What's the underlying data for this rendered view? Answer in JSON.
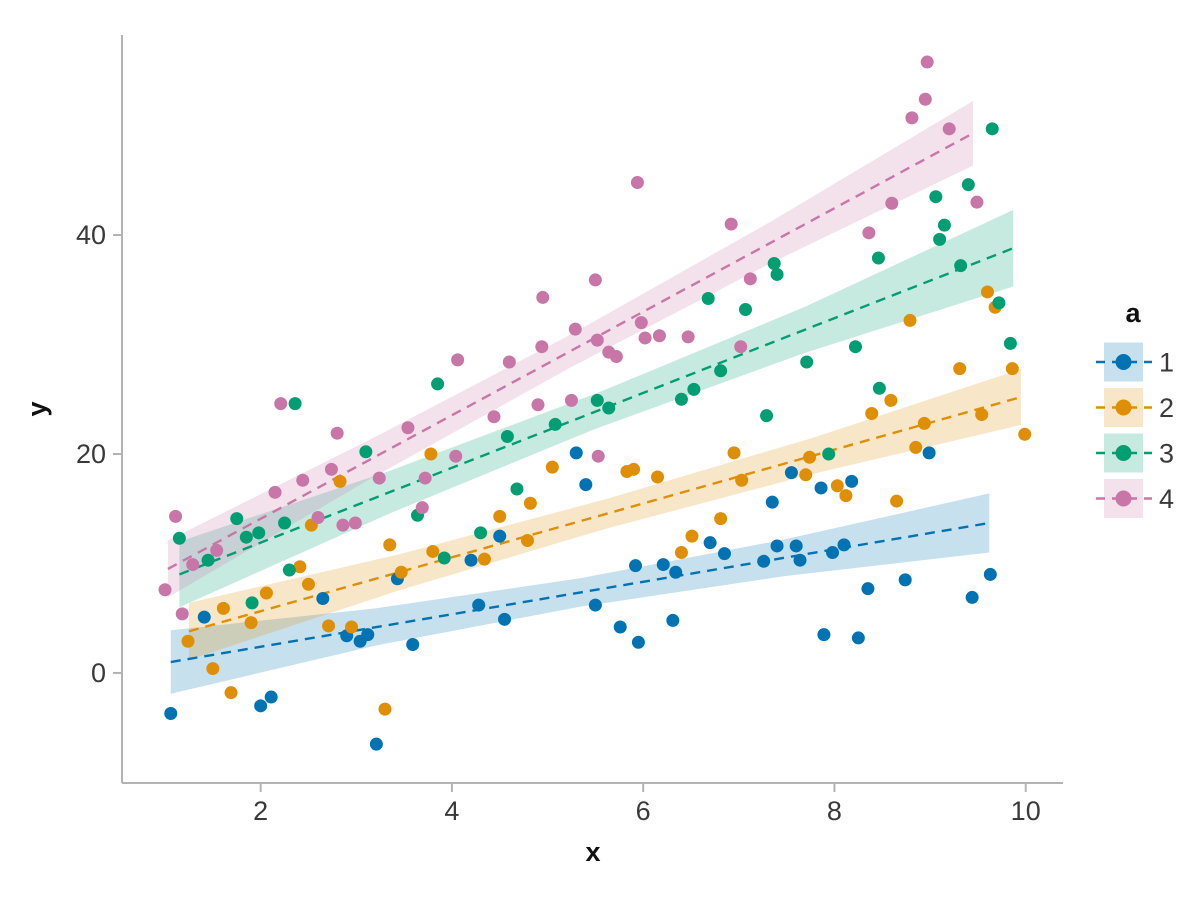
{
  "chart_data": {
    "type": "scatter",
    "title": "",
    "xlabel": "x",
    "ylabel": "y",
    "legend_title": "a",
    "xlim": [
      0.55,
      10.39
    ],
    "ylim": [
      -10.05,
      58.27
    ],
    "x_ticks": [
      2,
      4,
      6,
      8,
      10
    ],
    "y_ticks": [
      0,
      20,
      40
    ],
    "grid": false,
    "legend_position": "right",
    "style": {
      "spine_color": "#b3b3b3",
      "tick_color": "#b3b3b3",
      "tick_label_color": "#3a3a3a",
      "band_opacity": 0.22,
      "marker_radius": 6.5,
      "line_dash": "10 7",
      "line_width": 2.4
    },
    "series": [
      {
        "name": "1",
        "color": "#0173b2",
        "regression_line": {
          "x": [
            1.06,
            9.62
          ],
          "y": [
            1.0,
            13.7
          ]
        },
        "band": {
          "x": [
            1.06,
            3.2,
            5.34,
            7.48,
            9.62
          ],
          "hi": [
            3.9,
            5.9,
            8.65,
            12.2,
            16.4
          ],
          "lo": [
            -1.9,
            2.5,
            6.05,
            8.85,
            11.0
          ]
        },
        "points": [
          [
            1.06,
            -3.7
          ],
          [
            1.41,
            5.1
          ],
          [
            2.0,
            -3.0
          ],
          [
            2.11,
            -2.2
          ],
          [
            2.65,
            6.8
          ],
          [
            2.9,
            3.4
          ],
          [
            3.04,
            2.9
          ],
          [
            3.12,
            3.5
          ],
          [
            3.21,
            -6.5
          ],
          [
            3.43,
            8.6
          ],
          [
            3.59,
            2.6
          ],
          [
            4.2,
            10.3
          ],
          [
            4.28,
            6.2
          ],
          [
            4.5,
            12.5
          ],
          [
            4.55,
            4.9
          ],
          [
            5.3,
            20.1
          ],
          [
            5.4,
            17.2
          ],
          [
            5.5,
            6.2
          ],
          [
            5.76,
            4.2
          ],
          [
            5.92,
            9.8
          ],
          [
            5.95,
            2.8
          ],
          [
            6.21,
            9.9
          ],
          [
            6.31,
            4.8
          ],
          [
            6.34,
            9.2
          ],
          [
            6.7,
            11.9
          ],
          [
            6.85,
            10.9
          ],
          [
            7.26,
            10.2
          ],
          [
            7.35,
            15.6
          ],
          [
            7.4,
            11.6
          ],
          [
            7.55,
            18.3
          ],
          [
            7.6,
            11.6
          ],
          [
            7.64,
            10.3
          ],
          [
            7.86,
            16.9
          ],
          [
            7.89,
            3.5
          ],
          [
            7.98,
            11.0
          ],
          [
            8.1,
            11.7
          ],
          [
            8.18,
            17.5
          ],
          [
            8.25,
            3.2
          ],
          [
            8.35,
            7.7
          ],
          [
            8.74,
            8.5
          ],
          [
            8.99,
            20.1
          ],
          [
            9.44,
            6.9
          ],
          [
            9.63,
            9.0
          ]
        ]
      },
      {
        "name": "2",
        "color": "#de8f05",
        "regression_line": {
          "x": [
            1.25,
            9.95
          ],
          "y": [
            3.8,
            25.2
          ]
        },
        "band": {
          "x": [
            1.25,
            3.43,
            5.6,
            7.78,
            9.95
          ],
          "hi": [
            6.4,
            10.8,
            15.85,
            21.5,
            27.75
          ],
          "lo": [
            1.2,
            7.5,
            13.15,
            18.2,
            22.65
          ]
        },
        "points": [
          [
            1.24,
            2.9
          ],
          [
            1.5,
            0.4
          ],
          [
            1.61,
            5.9
          ],
          [
            1.69,
            -1.8
          ],
          [
            1.9,
            4.6
          ],
          [
            2.06,
            7.3
          ],
          [
            2.41,
            9.7
          ],
          [
            2.5,
            8.1
          ],
          [
            2.53,
            13.5
          ],
          [
            2.71,
            4.3
          ],
          [
            2.83,
            17.5
          ],
          [
            2.95,
            4.2
          ],
          [
            3.3,
            -3.3
          ],
          [
            3.35,
            11.7
          ],
          [
            3.47,
            9.2
          ],
          [
            3.78,
            20.0
          ],
          [
            3.8,
            11.1
          ],
          [
            4.34,
            10.4
          ],
          [
            4.5,
            14.3
          ],
          [
            4.79,
            12.1
          ],
          [
            4.82,
            15.5
          ],
          [
            5.05,
            18.8
          ],
          [
            5.83,
            18.4
          ],
          [
            5.9,
            18.6
          ],
          [
            6.15,
            17.9
          ],
          [
            6.4,
            11.0
          ],
          [
            6.51,
            12.5
          ],
          [
            6.81,
            14.1
          ],
          [
            6.95,
            20.1
          ],
          [
            7.03,
            17.6
          ],
          [
            7.7,
            18.1
          ],
          [
            7.74,
            19.7
          ],
          [
            8.03,
            17.1
          ],
          [
            8.12,
            16.2
          ],
          [
            8.39,
            23.7
          ],
          [
            8.59,
            24.9
          ],
          [
            8.65,
            15.7
          ],
          [
            8.79,
            32.2
          ],
          [
            8.85,
            20.6
          ],
          [
            8.94,
            22.8
          ],
          [
            9.31,
            27.8
          ],
          [
            9.54,
            23.6
          ],
          [
            9.6,
            34.8
          ],
          [
            9.68,
            33.4
          ],
          [
            9.86,
            27.8
          ],
          [
            9.99,
            21.8
          ]
        ]
      },
      {
        "name": "3",
        "color": "#029e73",
        "regression_line": {
          "x": [
            1.15,
            9.87
          ],
          "y": [
            9.0,
            38.8
          ]
        },
        "band": {
          "x": [
            1.15,
            3.33,
            5.5,
            7.68,
            9.87
          ],
          "hi": [
            12.0,
            18.4,
            25.5,
            33.4,
            42.3
          ],
          "lo": [
            6.0,
            14.5,
            22.3,
            29.2,
            35.3
          ]
        },
        "points": [
          [
            1.15,
            12.3
          ],
          [
            1.45,
            10.3
          ],
          [
            1.75,
            14.1
          ],
          [
            1.85,
            12.4
          ],
          [
            1.91,
            6.4
          ],
          [
            1.98,
            12.8
          ],
          [
            2.25,
            13.7
          ],
          [
            2.3,
            9.4
          ],
          [
            2.36,
            24.6
          ],
          [
            3.1,
            20.2
          ],
          [
            3.64,
            14.4
          ],
          [
            3.85,
            26.4
          ],
          [
            3.92,
            10.5
          ],
          [
            4.3,
            12.8
          ],
          [
            4.58,
            21.6
          ],
          [
            4.68,
            16.8
          ],
          [
            5.08,
            22.7
          ],
          [
            5.52,
            24.9
          ],
          [
            5.64,
            24.2
          ],
          [
            6.4,
            25.0
          ],
          [
            6.53,
            25.9
          ],
          [
            6.68,
            34.2
          ],
          [
            6.81,
            27.6
          ],
          [
            7.07,
            33.2
          ],
          [
            7.29,
            23.5
          ],
          [
            7.37,
            37.4
          ],
          [
            7.4,
            36.4
          ],
          [
            7.71,
            28.4
          ],
          [
            7.94,
            20.0
          ],
          [
            8.22,
            29.8
          ],
          [
            8.46,
            37.9
          ],
          [
            8.47,
            26.0
          ],
          [
            9.06,
            43.5
          ],
          [
            9.1,
            39.6
          ],
          [
            9.15,
            40.9
          ],
          [
            9.32,
            37.2
          ],
          [
            9.4,
            44.6
          ],
          [
            9.65,
            49.7
          ],
          [
            9.72,
            33.8
          ],
          [
            9.84,
            30.1
          ]
        ]
      },
      {
        "name": "4",
        "color": "#c876a8",
        "regression_line": {
          "x": [
            1.03,
            9.45
          ],
          "y": [
            9.5,
            49.3
          ]
        },
        "band": {
          "x": [
            1.03,
            3.14,
            5.24,
            7.35,
            9.45
          ],
          "hi": [
            12.1,
            21.3,
            30.9,
            41.3,
            52.25
          ],
          "lo": [
            6.9,
            17.7,
            27.9,
            37.5,
            46.35
          ]
        },
        "points": [
          [
            1.0,
            7.6
          ],
          [
            1.11,
            14.3
          ],
          [
            1.18,
            5.4
          ],
          [
            1.29,
            9.9
          ],
          [
            1.54,
            11.2
          ],
          [
            2.15,
            16.5
          ],
          [
            2.21,
            24.6
          ],
          [
            2.44,
            17.6
          ],
          [
            2.6,
            14.2
          ],
          [
            2.74,
            18.6
          ],
          [
            2.8,
            21.9
          ],
          [
            2.86,
            13.5
          ],
          [
            2.99,
            13.7
          ],
          [
            3.24,
            17.8
          ],
          [
            3.54,
            22.4
          ],
          [
            3.69,
            15.1
          ],
          [
            3.72,
            17.8
          ],
          [
            4.04,
            19.8
          ],
          [
            4.06,
            28.6
          ],
          [
            4.44,
            23.4
          ],
          [
            4.6,
            28.4
          ],
          [
            4.9,
            24.5
          ],
          [
            4.94,
            29.8
          ],
          [
            4.95,
            34.3
          ],
          [
            5.25,
            24.9
          ],
          [
            5.29,
            31.4
          ],
          [
            5.5,
            35.9
          ],
          [
            5.52,
            30.4
          ],
          [
            5.53,
            19.8
          ],
          [
            5.64,
            29.3
          ],
          [
            5.72,
            28.9
          ],
          [
            5.94,
            44.8
          ],
          [
            5.98,
            32.0
          ],
          [
            6.02,
            30.6
          ],
          [
            6.17,
            30.8
          ],
          [
            6.47,
            30.7
          ],
          [
            6.92,
            41.0
          ],
          [
            7.02,
            29.8
          ],
          [
            7.12,
            36.0
          ],
          [
            8.36,
            40.2
          ],
          [
            8.6,
            42.9
          ],
          [
            8.81,
            50.7
          ],
          [
            8.95,
            52.4
          ],
          [
            8.97,
            55.8
          ],
          [
            9.2,
            49.7
          ],
          [
            9.49,
            43.0
          ]
        ]
      }
    ]
  }
}
